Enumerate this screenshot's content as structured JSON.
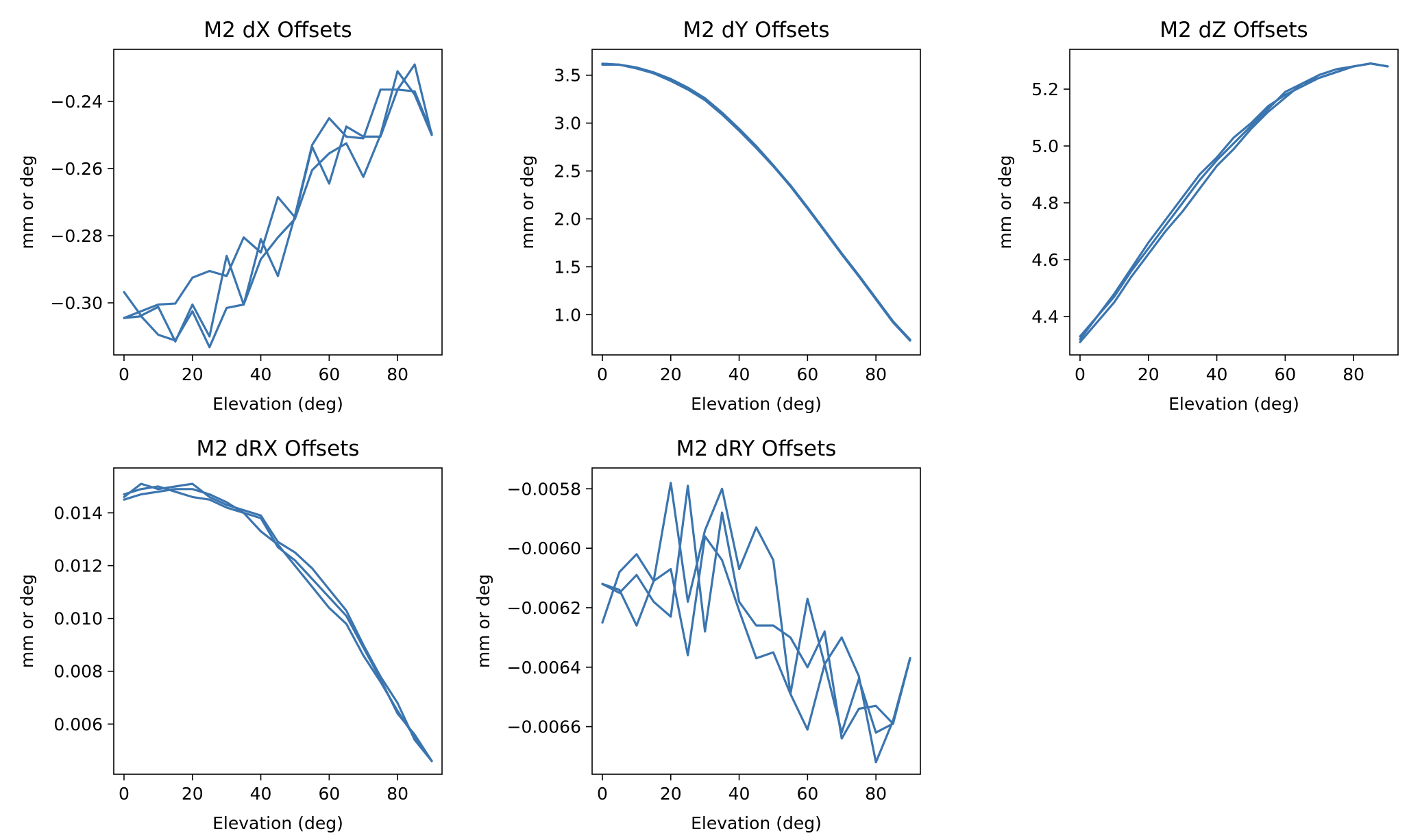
{
  "figure": {
    "line_color": "#3b75af",
    "background": "#ffffff"
  },
  "chart_data": [
    {
      "type": "line",
      "title": "M2 dX Offsets",
      "xlabel": "Elevation (deg)",
      "ylabel": "mm or deg",
      "xlim": [
        -3,
        93
      ],
      "ylim": [
        -0.3155,
        -0.2245
      ],
      "xticks": [
        0,
        20,
        40,
        60,
        80
      ],
      "xtick_labels": [
        "0",
        "20",
        "40",
        "60",
        "80"
      ],
      "yticks": [
        -0.3,
        -0.28,
        -0.26,
        -0.24
      ],
      "ytick_labels": [
        "−0.30",
        "−0.28",
        "−0.26",
        "−0.24"
      ],
      "grid": false,
      "series": [
        {
          "x": [
            0,
            5,
            10,
            15,
            20,
            25,
            30,
            35,
            40,
            45,
            50,
            55,
            60,
            65,
            70,
            75,
            80,
            85,
            90
          ],
          "y": [
            -0.3045,
            -0.3025,
            -0.3005,
            -0.3002,
            -0.2925,
            -0.2905,
            -0.292,
            -0.2805,
            -0.285,
            -0.2685,
            -0.2745,
            -0.2535,
            -0.2645,
            -0.2475,
            -0.2505,
            -0.2505,
            -0.2365,
            -0.237,
            -0.2495
          ]
        },
        {
          "x": [
            0,
            5,
            10,
            15,
            20,
            25,
            30,
            35,
            40,
            45,
            50,
            55,
            60,
            65,
            70,
            75,
            80,
            85,
            90
          ],
          "y": [
            -0.2968,
            -0.3038,
            -0.3012,
            -0.3115,
            -0.3005,
            -0.31,
            -0.286,
            -0.3005,
            -0.281,
            -0.292,
            -0.274,
            -0.253,
            -0.245,
            -0.2505,
            -0.251,
            -0.2365,
            -0.2365,
            -0.229,
            -0.25
          ]
        },
        {
          "x": [
            0,
            5,
            10,
            15,
            20,
            25,
            30,
            35,
            40,
            45,
            50,
            55,
            60,
            65,
            70,
            75,
            80,
            85,
            90
          ],
          "y": [
            -0.3045,
            -0.304,
            -0.3095,
            -0.3112,
            -0.3025,
            -0.3132,
            -0.3015,
            -0.3005,
            -0.287,
            -0.2805,
            -0.275,
            -0.2605,
            -0.2555,
            -0.2525,
            -0.2625,
            -0.25,
            -0.231,
            -0.238,
            -0.25
          ]
        }
      ]
    },
    {
      "type": "line",
      "title": "M2 dY Offsets",
      "xlabel": "Elevation (deg)",
      "ylabel": "mm or deg",
      "xlim": [
        -3,
        93
      ],
      "ylim": [
        0.58,
        3.77
      ],
      "xticks": [
        0,
        20,
        40,
        60,
        80
      ],
      "xtick_labels": [
        "0",
        "20",
        "40",
        "60",
        "80"
      ],
      "yticks": [
        1.0,
        1.5,
        2.0,
        2.5,
        3.0,
        3.5
      ],
      "ytick_labels": [
        "1.0",
        "1.5",
        "2.0",
        "2.5",
        "3.0",
        "3.5"
      ],
      "grid": false,
      "series": [
        {
          "x": [
            0,
            5,
            10,
            15,
            20,
            25,
            30,
            35,
            40,
            45,
            50,
            55,
            60,
            65,
            70,
            75,
            80,
            85,
            90
          ],
          "y": [
            3.62,
            3.61,
            3.58,
            3.53,
            3.46,
            3.37,
            3.26,
            3.11,
            2.94,
            2.76,
            2.56,
            2.35,
            2.12,
            1.88,
            1.64,
            1.41,
            1.17,
            0.93,
            0.73
          ]
        },
        {
          "x": [
            0,
            5,
            10,
            15,
            20,
            25,
            30,
            35,
            40,
            45,
            50,
            55,
            60,
            65,
            70,
            75,
            80,
            85,
            90
          ],
          "y": [
            3.62,
            3.61,
            3.58,
            3.52,
            3.44,
            3.35,
            3.24,
            3.09,
            2.92,
            2.74,
            2.55,
            2.34,
            2.11,
            1.87,
            1.63,
            1.4,
            1.16,
            0.92,
            0.73
          ]
        },
        {
          "x": [
            0,
            5,
            10,
            15,
            20,
            25,
            30,
            35,
            40,
            45,
            50,
            55,
            60,
            65,
            70,
            75,
            80,
            85,
            90
          ],
          "y": [
            3.61,
            3.61,
            3.57,
            3.52,
            3.45,
            3.36,
            3.25,
            3.1,
            2.93,
            2.75,
            2.55,
            2.35,
            2.12,
            1.88,
            1.64,
            1.41,
            1.17,
            0.93,
            0.74
          ]
        }
      ]
    },
    {
      "type": "line",
      "title": "M2 dZ Offsets",
      "xlabel": "Elevation (deg)",
      "ylabel": "mm or deg",
      "xlim": [
        -3,
        93
      ],
      "ylim": [
        4.265,
        5.34
      ],
      "xticks": [
        0,
        20,
        40,
        60,
        80
      ],
      "xtick_labels": [
        "0",
        "20",
        "40",
        "60",
        "80"
      ],
      "yticks": [
        4.4,
        4.6,
        4.8,
        5.0,
        5.2
      ],
      "ytick_labels": [
        "4.4",
        "4.6",
        "4.8",
        "5.0",
        "5.2"
      ],
      "grid": false,
      "series": [
        {
          "x": [
            0,
            5,
            10,
            15,
            20,
            25,
            30,
            35,
            40,
            45,
            50,
            55,
            60,
            65,
            70,
            75,
            80,
            85,
            90
          ],
          "y": [
            4.31,
            4.38,
            4.45,
            4.54,
            4.62,
            4.7,
            4.77,
            4.85,
            4.93,
            4.99,
            5.06,
            5.12,
            5.17,
            5.22,
            5.25,
            5.27,
            5.28,
            5.29,
            5.28
          ]
        },
        {
          "x": [
            0,
            5,
            10,
            15,
            20,
            25,
            30,
            35,
            40,
            45,
            50,
            55,
            60,
            65,
            70,
            75,
            80,
            85,
            90
          ],
          "y": [
            4.33,
            4.4,
            4.47,
            4.56,
            4.64,
            4.72,
            4.8,
            4.88,
            4.95,
            5.01,
            5.07,
            5.13,
            5.19,
            5.22,
            5.24,
            5.26,
            5.28,
            5.29,
            5.28
          ]
        },
        {
          "x": [
            0,
            5,
            10,
            15,
            20,
            25,
            30,
            35,
            40,
            45,
            50,
            55,
            60,
            65,
            70,
            75,
            80,
            85,
            90
          ],
          "y": [
            4.32,
            4.4,
            4.48,
            4.57,
            4.66,
            4.74,
            4.82,
            4.9,
            4.96,
            5.03,
            5.08,
            5.14,
            5.18,
            5.21,
            5.24,
            5.26,
            5.28,
            5.29,
            5.28
          ]
        }
      ]
    },
    {
      "type": "line",
      "title": "M2 dRX Offsets",
      "xlabel": "Elevation (deg)",
      "ylabel": "mm or deg",
      "xlim": [
        -3,
        93
      ],
      "ylim": [
        0.0041,
        0.0157
      ],
      "xticks": [
        0,
        20,
        40,
        60,
        80
      ],
      "xtick_labels": [
        "0",
        "20",
        "40",
        "60",
        "80"
      ],
      "yticks": [
        0.006,
        0.008,
        0.01,
        0.012,
        0.014
      ],
      "ytick_labels": [
        "0.006",
        "0.008",
        "0.010",
        "0.012",
        "0.014"
      ],
      "grid": false,
      "series": [
        {
          "x": [
            0,
            5,
            10,
            15,
            20,
            25,
            30,
            35,
            40,
            45,
            50,
            55,
            60,
            65,
            70,
            75,
            80,
            85,
            90
          ],
          "y": [
            0.0146,
            0.0151,
            0.0149,
            0.015,
            0.0151,
            0.0146,
            0.0143,
            0.0141,
            0.0139,
            0.0129,
            0.0125,
            0.0119,
            0.0111,
            0.0103,
            0.009,
            0.0078,
            0.0068,
            0.0054,
            0.0046
          ]
        },
        {
          "x": [
            0,
            5,
            10,
            15,
            20,
            25,
            30,
            35,
            40,
            45,
            50,
            55,
            60,
            65,
            70,
            75,
            80,
            85,
            90
          ],
          "y": [
            0.0147,
            0.0149,
            0.015,
            0.0148,
            0.0146,
            0.0145,
            0.0142,
            0.014,
            0.0138,
            0.0127,
            0.0122,
            0.0115,
            0.0108,
            0.0101,
            0.0089,
            0.0077,
            0.0064,
            0.0056,
            0.0046
          ]
        },
        {
          "x": [
            0,
            5,
            10,
            15,
            20,
            25,
            30,
            35,
            40,
            45,
            50,
            55,
            60,
            65,
            70,
            75,
            80,
            85,
            90
          ],
          "y": [
            0.0145,
            0.0147,
            0.0148,
            0.0149,
            0.0149,
            0.0147,
            0.0144,
            0.014,
            0.0133,
            0.0128,
            0.012,
            0.0112,
            0.0104,
            0.0098,
            0.0086,
            0.0076,
            0.0065,
            0.0055,
            0.0046
          ]
        }
      ]
    },
    {
      "type": "line",
      "title": "M2 dRY Offsets",
      "xlabel": "Elevation (deg)",
      "ylabel": "mm or deg",
      "xlim": [
        -3,
        93
      ],
      "ylim": [
        -0.00676,
        -0.00573
      ],
      "xticks": [
        0,
        20,
        40,
        60,
        80
      ],
      "xtick_labels": [
        "0",
        "20",
        "40",
        "60",
        "80"
      ],
      "yticks": [
        -0.0066,
        -0.0064,
        -0.0062,
        -0.006,
        -0.0058
      ],
      "ytick_labels": [
        "−0.0066",
        "−0.0064",
        "−0.0062",
        "−0.0060",
        "−0.0058"
      ],
      "grid": false,
      "series": [
        {
          "x": [
            0,
            5,
            10,
            15,
            20,
            25,
            30,
            35,
            40,
            45,
            50,
            55,
            60,
            65,
            70,
            75,
            80,
            85,
            90
          ],
          "y": [
            -0.00625,
            -0.00608,
            -0.00602,
            -0.00611,
            -0.00578,
            -0.00618,
            -0.00594,
            -0.0058,
            -0.00607,
            -0.00593,
            -0.00604,
            -0.00649,
            -0.00617,
            -0.00639,
            -0.0063,
            -0.00643,
            -0.00672,
            -0.00658,
            -0.00637
          ]
        },
        {
          "x": [
            0,
            5,
            10,
            15,
            20,
            25,
            30,
            35,
            40,
            45,
            50,
            55,
            60,
            65,
            70,
            75,
            80,
            85,
            90
          ],
          "y": [
            -0.00612,
            -0.00615,
            -0.00609,
            -0.00618,
            -0.00623,
            -0.00579,
            -0.00628,
            -0.00588,
            -0.00618,
            -0.00626,
            -0.00626,
            -0.0063,
            -0.0064,
            -0.00628,
            -0.00664,
            -0.00654,
            -0.00653,
            -0.00659,
            -0.00637
          ]
        },
        {
          "x": [
            0,
            5,
            10,
            15,
            20,
            25,
            30,
            35,
            40,
            45,
            50,
            55,
            60,
            65,
            70,
            75,
            80,
            85,
            90
          ],
          "y": [
            -0.00612,
            -0.00614,
            -0.00626,
            -0.00611,
            -0.00607,
            -0.00636,
            -0.00596,
            -0.00604,
            -0.00621,
            -0.00637,
            -0.00635,
            -0.00649,
            -0.00661,
            -0.00639,
            -0.00662,
            -0.00644,
            -0.00662,
            -0.00659,
            -0.00637
          ]
        }
      ]
    }
  ]
}
